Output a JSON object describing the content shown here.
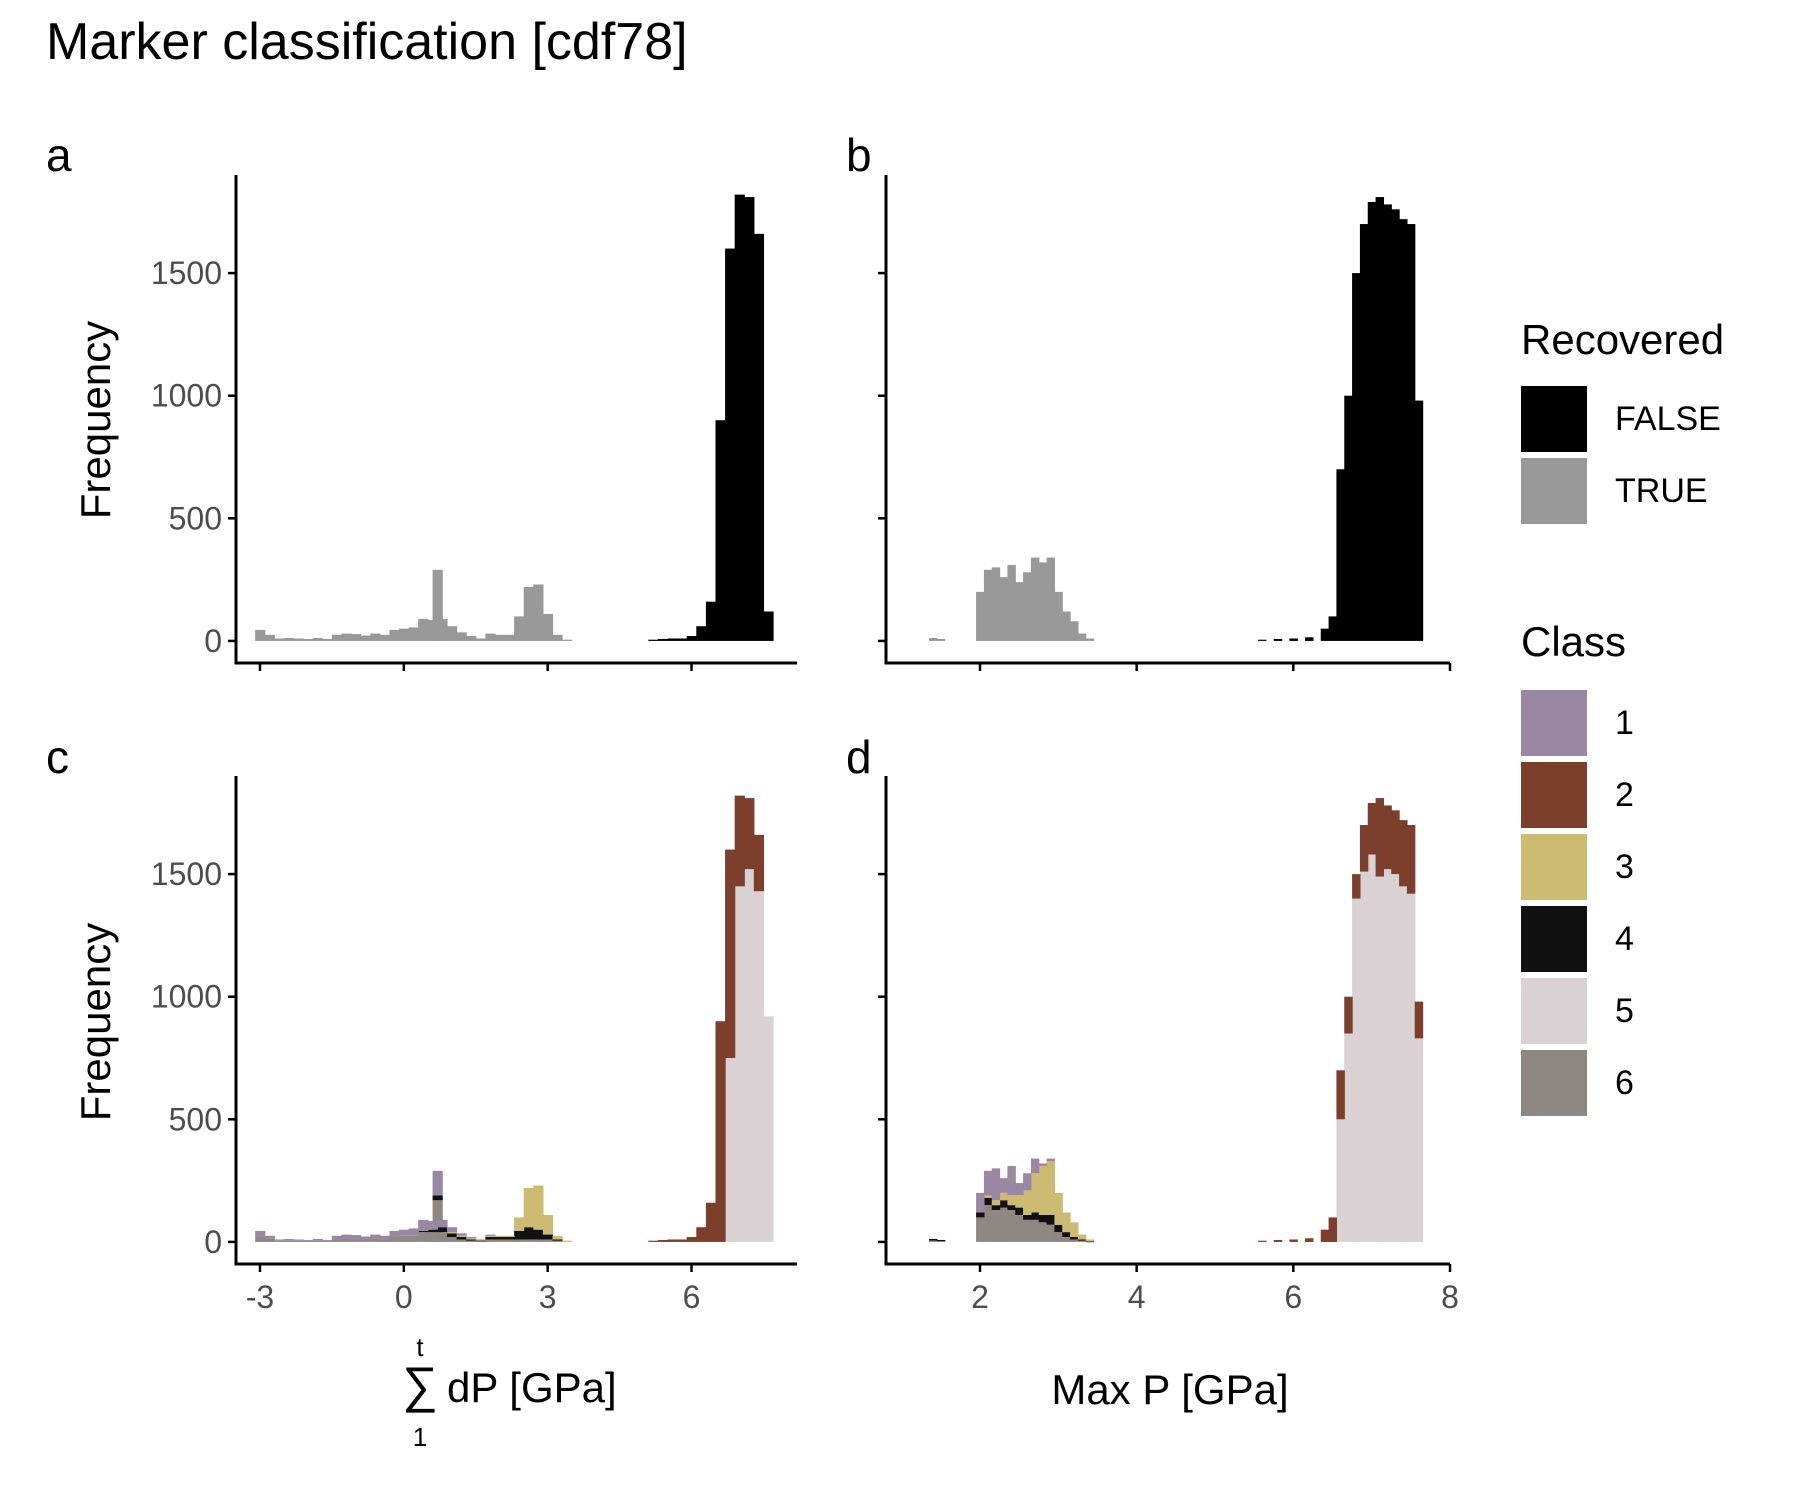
{
  "title": "Marker classification [cdf78]",
  "panels": [
    {
      "letter": "a",
      "ylabel": "Frequency"
    },
    {
      "letter": "b"
    },
    {
      "letter": "c",
      "ylabel": "Frequency"
    },
    {
      "letter": "d"
    }
  ],
  "xlabels": {
    "left_symbol": "∑",
    "left_sup": "t",
    "left_sub": "1",
    "left_text": "dP [GPa]",
    "right": "Max P [GPa]"
  },
  "legend_recovered": {
    "title": "Recovered",
    "items": [
      {
        "label": "FALSE",
        "color": "#000000"
      },
      {
        "label": "TRUE",
        "color": "#999999"
      }
    ]
  },
  "legend_class": {
    "title": "Class",
    "items": [
      {
        "label": "1",
        "color": "#9a87a4"
      },
      {
        "label": "2",
        "color": "#7b3f2c"
      },
      {
        "label": "3",
        "color": "#cdbb72"
      },
      {
        "label": "4",
        "color": "#111111"
      },
      {
        "label": "5",
        "color": "#d9d1d4"
      },
      {
        "label": "6",
        "color": "#8f8882"
      }
    ]
  },
  "chart_data": [
    {
      "panel": "a",
      "type": "bar",
      "xlim": [
        -3.5,
        8.2
      ],
      "ylim": [
        -90,
        1900
      ],
      "xticks": [
        -3,
        0,
        3,
        6
      ],
      "xtick_labels": [],
      "yticks": [
        0,
        500,
        1000,
        1500
      ],
      "ytick_labels": [
        "0",
        "500",
        "1000",
        "1500"
      ],
      "bin_width": 0.2,
      "series": [
        {
          "name": "TRUE",
          "color": "#999999",
          "x": [
            -3.0,
            -2.8,
            -2.6,
            -2.4,
            -2.2,
            -2.0,
            -1.8,
            -1.6,
            -1.4,
            -1.2,
            -1.0,
            -0.8,
            -0.6,
            -0.4,
            -0.2,
            0.0,
            0.2,
            0.4,
            0.6,
            0.7,
            0.8,
            1.0,
            1.2,
            1.4,
            1.6,
            1.8,
            2.0,
            2.2,
            2.4,
            2.6,
            2.8,
            3.0,
            3.2,
            3.4
          ],
          "values": [
            45,
            25,
            10,
            12,
            10,
            8,
            12,
            8,
            25,
            30,
            28,
            22,
            30,
            25,
            45,
            50,
            55,
            90,
            85,
            290,
            90,
            60,
            35,
            20,
            10,
            30,
            25,
            25,
            100,
            220,
            230,
            110,
            25,
            5
          ]
        },
        {
          "name": "FALSE",
          "color": "#000000",
          "x": [
            5.2,
            5.4,
            5.6,
            5.8,
            6.0,
            6.2,
            6.4,
            6.6,
            6.8,
            7.0,
            7.2,
            7.4,
            7.6
          ],
          "values": [
            5,
            8,
            10,
            10,
            20,
            60,
            160,
            900,
            1600,
            1820,
            1810,
            1660,
            120
          ]
        }
      ]
    },
    {
      "panel": "b",
      "type": "bar",
      "xlim": [
        0.8,
        8.0
      ],
      "ylim": [
        -90,
        1900
      ],
      "xticks": [
        2,
        4,
        6,
        8
      ],
      "xtick_labels": [],
      "yticks": [
        0,
        500,
        1000,
        1500
      ],
      "ytick_labels": [],
      "bin_width": 0.1,
      "series": [
        {
          "name": "TRUE",
          "color": "#999999",
          "x": [
            1.4,
            1.5,
            2.0,
            2.1,
            2.2,
            2.3,
            2.4,
            2.5,
            2.6,
            2.7,
            2.8,
            2.9,
            3.0,
            3.1,
            3.2,
            3.3,
            3.4
          ],
          "values": [
            12,
            8,
            200,
            290,
            300,
            260,
            310,
            240,
            280,
            340,
            320,
            340,
            200,
            120,
            80,
            30,
            10
          ]
        },
        {
          "name": "FALSE",
          "color": "#000000",
          "x": [
            5.6,
            5.8,
            6.0,
            6.2,
            6.4,
            6.5,
            6.6,
            6.7,
            6.8,
            6.9,
            7.0,
            7.1,
            7.2,
            7.3,
            7.4,
            7.5,
            7.6
          ],
          "values": [
            5,
            8,
            10,
            15,
            50,
            100,
            700,
            1000,
            1500,
            1700,
            1790,
            1810,
            1780,
            1760,
            1720,
            1700,
            980
          ]
        }
      ]
    },
    {
      "panel": "c",
      "type": "bar",
      "xlim": [
        -3.5,
        8.2
      ],
      "ylim": [
        -90,
        1900
      ],
      "xticks": [
        -3,
        0,
        3,
        6
      ],
      "xtick_labels": [
        "-3",
        "0",
        "3",
        "6"
      ],
      "yticks": [
        0,
        500,
        1000,
        1500
      ],
      "ytick_labels": [
        "0",
        "500",
        "1000",
        "1500"
      ],
      "bin_width": 0.2,
      "stacked": true,
      "x": [
        -3.0,
        -2.8,
        -2.6,
        -2.4,
        -2.2,
        -2.0,
        -1.8,
        -1.6,
        -1.4,
        -1.2,
        -1.0,
        -0.8,
        -0.6,
        -0.4,
        -0.2,
        0.0,
        0.2,
        0.4,
        0.6,
        0.7,
        0.8,
        1.0,
        1.2,
        1.4,
        1.6,
        1.8,
        2.0,
        2.2,
        2.4,
        2.6,
        2.8,
        3.0,
        3.2,
        3.4,
        5.2,
        5.4,
        5.6,
        5.8,
        6.0,
        6.2,
        6.4,
        6.6,
        6.8,
        7.0,
        7.2,
        7.4,
        7.6
      ],
      "series": [
        {
          "name": "6",
          "color": "#8f8882",
          "values": [
            20,
            15,
            5,
            5,
            5,
            5,
            5,
            5,
            10,
            10,
            10,
            10,
            15,
            10,
            20,
            25,
            25,
            40,
            40,
            170,
            40,
            20,
            10,
            5,
            3,
            10,
            10,
            10,
            10,
            10,
            10,
            10,
            5,
            0,
            0,
            0,
            0,
            0,
            0,
            0,
            0,
            0,
            0,
            0,
            0,
            0,
            0
          ]
        },
        {
          "name": "4",
          "color": "#111111",
          "values": [
            0,
            0,
            0,
            0,
            0,
            0,
            0,
            0,
            0,
            0,
            0,
            0,
            0,
            0,
            0,
            0,
            0,
            5,
            10,
            20,
            20,
            15,
            10,
            5,
            3,
            10,
            10,
            10,
            35,
            50,
            40,
            20,
            5,
            0,
            0,
            0,
            0,
            0,
            0,
            0,
            0,
            0,
            0,
            0,
            0,
            0,
            0
          ]
        },
        {
          "name": "3",
          "color": "#cdbb72",
          "values": [
            0,
            0,
            0,
            0,
            0,
            0,
            0,
            0,
            0,
            0,
            0,
            0,
            0,
            0,
            0,
            0,
            0,
            0,
            0,
            0,
            0,
            5,
            5,
            5,
            2,
            5,
            5,
            5,
            55,
            160,
            180,
            80,
            15,
            5,
            0,
            0,
            0,
            0,
            0,
            0,
            0,
            0,
            0,
            0,
            0,
            0,
            0
          ]
        },
        {
          "name": "1",
          "color": "#9a87a4",
          "values": [
            25,
            10,
            5,
            7,
            5,
            3,
            7,
            3,
            15,
            20,
            18,
            12,
            15,
            15,
            25,
            25,
            30,
            45,
            35,
            100,
            30,
            20,
            10,
            5,
            2,
            5,
            0,
            0,
            0,
            0,
            0,
            0,
            0,
            0,
            0,
            0,
            0,
            0,
            0,
            0,
            0,
            0,
            0,
            0,
            0,
            0,
            0
          ]
        },
        {
          "name": "5",
          "color": "#d9d1d4",
          "values": [
            0,
            0,
            0,
            0,
            0,
            0,
            0,
            0,
            0,
            0,
            0,
            0,
            0,
            0,
            0,
            0,
            0,
            0,
            0,
            0,
            0,
            0,
            0,
            0,
            0,
            0,
            0,
            0,
            0,
            0,
            0,
            0,
            0,
            0,
            0,
            0,
            0,
            0,
            0,
            0,
            0,
            0,
            750,
            1450,
            1520,
            1430,
            920
          ]
        },
        {
          "name": "2",
          "color": "#7b3f2c",
          "values": [
            0,
            0,
            0,
            0,
            0,
            0,
            0,
            0,
            0,
            0,
            0,
            0,
            0,
            0,
            0,
            0,
            0,
            0,
            0,
            0,
            0,
            0,
            0,
            0,
            0,
            0,
            0,
            0,
            0,
            0,
            0,
            0,
            0,
            0,
            5,
            8,
            10,
            10,
            20,
            60,
            160,
            900,
            850,
            370,
            290,
            230,
            0
          ]
        }
      ]
    },
    {
      "panel": "d",
      "type": "bar",
      "xlim": [
        0.8,
        8.0
      ],
      "ylim": [
        -90,
        1900
      ],
      "xticks": [
        2,
        4,
        6,
        8
      ],
      "xtick_labels": [
        "2",
        "4",
        "6",
        "8"
      ],
      "yticks": [
        0,
        500,
        1000,
        1500
      ],
      "ytick_labels": [],
      "bin_width": 0.1,
      "stacked": true,
      "x": [
        1.4,
        1.5,
        2.0,
        2.1,
        2.2,
        2.3,
        2.4,
        2.5,
        2.6,
        2.7,
        2.8,
        2.9,
        3.0,
        3.1,
        3.2,
        3.3,
        3.4,
        5.6,
        5.8,
        6.0,
        6.2,
        6.4,
        6.5,
        6.6,
        6.7,
        6.8,
        6.9,
        7.0,
        7.1,
        7.2,
        7.3,
        7.4,
        7.5,
        7.6
      ],
      "series": [
        {
          "name": "6",
          "color": "#8f8882",
          "values": [
            5,
            3,
            100,
            150,
            130,
            140,
            130,
            110,
            90,
            90,
            80,
            70,
            40,
            20,
            10,
            5,
            0,
            0,
            0,
            0,
            0,
            0,
            0,
            0,
            0,
            0,
            0,
            0,
            0,
            0,
            0,
            0,
            0,
            0
          ]
        },
        {
          "name": "4",
          "color": "#111111",
          "values": [
            7,
            5,
            20,
            30,
            20,
            30,
            20,
            30,
            20,
            30,
            30,
            40,
            30,
            20,
            10,
            5,
            2,
            0,
            0,
            0,
            0,
            0,
            0,
            0,
            0,
            0,
            0,
            0,
            0,
            0,
            0,
            0,
            0,
            0
          ]
        },
        {
          "name": "3",
          "color": "#cdbb72",
          "values": [
            0,
            0,
            0,
            10,
            20,
            30,
            40,
            50,
            100,
            160,
            200,
            220,
            130,
            80,
            60,
            20,
            8,
            0,
            0,
            0,
            0,
            0,
            0,
            0,
            0,
            0,
            0,
            0,
            0,
            0,
            0,
            0,
            0,
            0
          ]
        },
        {
          "name": "1",
          "color": "#9a87a4",
          "values": [
            0,
            0,
            80,
            100,
            130,
            60,
            120,
            50,
            70,
            60,
            10,
            10,
            0,
            0,
            0,
            0,
            0,
            0,
            0,
            0,
            0,
            0,
            0,
            0,
            0,
            0,
            0,
            0,
            0,
            0,
            0,
            0,
            0,
            0
          ]
        },
        {
          "name": "5",
          "color": "#d9d1d4",
          "values": [
            0,
            0,
            0,
            0,
            0,
            0,
            0,
            0,
            0,
            0,
            0,
            0,
            0,
            0,
            0,
            0,
            0,
            0,
            0,
            0,
            0,
            0,
            0,
            500,
            850,
            1400,
            1510,
            1580,
            1490,
            1520,
            1500,
            1450,
            1420,
            830
          ]
        },
        {
          "name": "2",
          "color": "#7b3f2c",
          "values": [
            0,
            0,
            0,
            0,
            0,
            0,
            0,
            0,
            0,
            0,
            0,
            0,
            0,
            0,
            0,
            0,
            0,
            5,
            8,
            10,
            15,
            50,
            100,
            200,
            150,
            100,
            190,
            210,
            320,
            260,
            260,
            270,
            280,
            150
          ]
        }
      ]
    }
  ]
}
